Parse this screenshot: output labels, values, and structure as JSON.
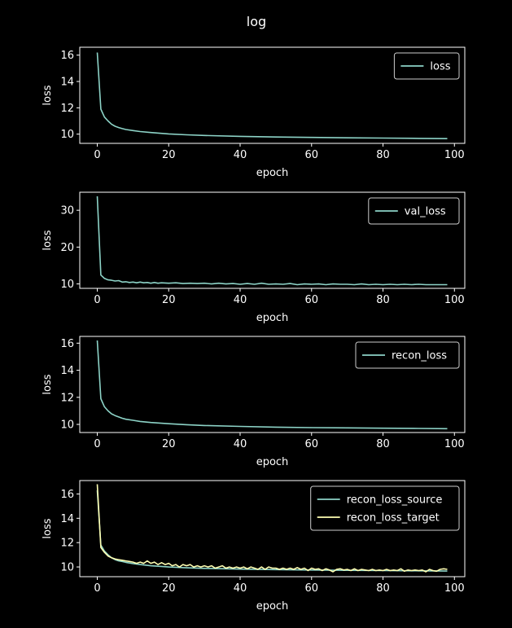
{
  "figure": {
    "title": "log"
  },
  "chart_data": [
    {
      "type": "line",
      "xlabel": "epoch",
      "ylabel": "loss",
      "xlim": [
        -4.9,
        102.9
      ],
      "ylim": [
        9.3,
        16.6
      ],
      "xticks": [
        0,
        20,
        40,
        60,
        80,
        100
      ],
      "yticks": [
        10,
        12,
        14,
        16
      ],
      "legend": "top-right",
      "series": [
        {
          "name": "loss",
          "color": "#8dd3c7",
          "points": [
            [
              0,
              16.2
            ],
            [
              1,
              11.9
            ],
            [
              2,
              11.3
            ],
            [
              3,
              11.0
            ],
            [
              4,
              10.75
            ],
            [
              5,
              10.6
            ],
            [
              6,
              10.5
            ],
            [
              7,
              10.42
            ],
            [
              8,
              10.35
            ],
            [
              10,
              10.27
            ],
            [
              12,
              10.2
            ],
            [
              15,
              10.12
            ],
            [
              20,
              10.02
            ],
            [
              25,
              9.95
            ],
            [
              30,
              9.9
            ],
            [
              40,
              9.83
            ],
            [
              50,
              9.78
            ],
            [
              60,
              9.75
            ],
            [
              70,
              9.72
            ],
            [
              80,
              9.7
            ],
            [
              90,
              9.68
            ],
            [
              98,
              9.66
            ]
          ]
        }
      ]
    },
    {
      "type": "line",
      "xlabel": "epoch",
      "ylabel": "loss",
      "xlim": [
        -4.9,
        102.9
      ],
      "ylim": [
        8.8,
        34.9
      ],
      "xticks": [
        0,
        20,
        40,
        60,
        80,
        100
      ],
      "yticks": [
        10,
        20,
        30
      ],
      "legend": "top-right",
      "series": [
        {
          "name": "val_loss",
          "color": "#8dd3c7",
          "points": [
            [
              0,
              33.8
            ],
            [
              1,
              12.4
            ],
            [
              2,
              11.5
            ],
            [
              3,
              11.1
            ],
            [
              4,
              11.0
            ],
            [
              5,
              10.8
            ],
            [
              6,
              10.9
            ],
            [
              7,
              10.5
            ],
            [
              8,
              10.6
            ],
            [
              9,
              10.4
            ],
            [
              10,
              10.5
            ],
            [
              11,
              10.3
            ],
            [
              12,
              10.5
            ],
            [
              13,
              10.3
            ],
            [
              14,
              10.4
            ],
            [
              15,
              10.2
            ],
            [
              16,
              10.4
            ],
            [
              17,
              10.2
            ],
            [
              18,
              10.3
            ],
            [
              20,
              10.2
            ],
            [
              22,
              10.3
            ],
            [
              24,
              10.1
            ],
            [
              26,
              10.2
            ],
            [
              28,
              10.1
            ],
            [
              30,
              10.2
            ],
            [
              32,
              10.0
            ],
            [
              34,
              10.2
            ],
            [
              36,
              10.0
            ],
            [
              38,
              10.1
            ],
            [
              40,
              9.9
            ],
            [
              42,
              10.1
            ],
            [
              44,
              9.9
            ],
            [
              46,
              10.2
            ],
            [
              48,
              9.9
            ],
            [
              50,
              10.0
            ],
            [
              52,
              9.9
            ],
            [
              54,
              10.1
            ],
            [
              56,
              9.8
            ],
            [
              58,
              10.0
            ],
            [
              60,
              9.9
            ],
            [
              62,
              10.0
            ],
            [
              64,
              9.8
            ],
            [
              66,
              10.0
            ],
            [
              68,
              9.9
            ],
            [
              70,
              9.9
            ],
            [
              72,
              9.8
            ],
            [
              74,
              10.0
            ],
            [
              76,
              9.8
            ],
            [
              78,
              9.9
            ],
            [
              80,
              9.8
            ],
            [
              82,
              9.9
            ],
            [
              84,
              9.8
            ],
            [
              86,
              9.9
            ],
            [
              88,
              9.8
            ],
            [
              90,
              9.9
            ],
            [
              92,
              9.8
            ],
            [
              94,
              9.8
            ],
            [
              96,
              9.8
            ],
            [
              98,
              9.8
            ]
          ]
        }
      ]
    },
    {
      "type": "line",
      "xlabel": "epoch",
      "ylabel": "loss",
      "xlim": [
        -4.9,
        102.9
      ],
      "ylim": [
        9.4,
        16.5
      ],
      "xticks": [
        0,
        20,
        40,
        60,
        80,
        100
      ],
      "yticks": [
        10,
        12,
        14,
        16
      ],
      "legend": "top-right",
      "series": [
        {
          "name": "recon_loss",
          "color": "#8dd3c7",
          "points": [
            [
              0,
              16.2
            ],
            [
              1,
              11.9
            ],
            [
              2,
              11.3
            ],
            [
              3,
              11.0
            ],
            [
              4,
              10.78
            ],
            [
              5,
              10.65
            ],
            [
              6,
              10.55
            ],
            [
              7,
              10.45
            ],
            [
              8,
              10.38
            ],
            [
              10,
              10.3
            ],
            [
              12,
              10.22
            ],
            [
              15,
              10.14
            ],
            [
              20,
              10.05
            ],
            [
              25,
              9.98
            ],
            [
              30,
              9.92
            ],
            [
              40,
              9.85
            ],
            [
              50,
              9.8
            ],
            [
              60,
              9.76
            ],
            [
              70,
              9.74
            ],
            [
              80,
              9.72
            ],
            [
              90,
              9.7
            ],
            [
              98,
              9.68
            ]
          ]
        }
      ]
    },
    {
      "type": "line",
      "xlabel": "epoch",
      "ylabel": "loss",
      "xlim": [
        -4.9,
        102.9
      ],
      "ylim": [
        9.2,
        17.1
      ],
      "xticks": [
        0,
        20,
        40,
        60,
        80,
        100
      ],
      "yticks": [
        10,
        12,
        14,
        16
      ],
      "legend": "top-right",
      "series": [
        {
          "name": "recon_loss_source",
          "color": "#8dd3c7",
          "points": [
            [
              0,
              16.3
            ],
            [
              1,
              11.8
            ],
            [
              2,
              11.3
            ],
            [
              3,
              11.0
            ],
            [
              4,
              10.75
            ],
            [
              5,
              10.6
            ],
            [
              6,
              10.5
            ],
            [
              7,
              10.45
            ],
            [
              8,
              10.38
            ],
            [
              10,
              10.28
            ],
            [
              12,
              10.2
            ],
            [
              15,
              10.1
            ],
            [
              20,
              10.0
            ],
            [
              25,
              9.93
            ],
            [
              30,
              9.88
            ],
            [
              40,
              9.82
            ],
            [
              50,
              9.78
            ],
            [
              60,
              9.75
            ],
            [
              70,
              9.72
            ],
            [
              80,
              9.7
            ],
            [
              90,
              9.68
            ],
            [
              98,
              9.66
            ]
          ]
        },
        {
          "name": "recon_loss_target",
          "color": "#ffffb3",
          "points": [
            [
              0,
              16.8
            ],
            [
              1,
              11.6
            ],
            [
              2,
              11.2
            ],
            [
              3,
              10.9
            ],
            [
              4,
              10.75
            ],
            [
              5,
              10.65
            ],
            [
              6,
              10.6
            ],
            [
              7,
              10.55
            ],
            [
              8,
              10.5
            ],
            [
              9,
              10.45
            ],
            [
              10,
              10.4
            ],
            [
              11,
              10.3
            ],
            [
              12,
              10.4
            ],
            [
              13,
              10.3
            ],
            [
              14,
              10.5
            ],
            [
              15,
              10.3
            ],
            [
              16,
              10.4
            ],
            [
              17,
              10.2
            ],
            [
              18,
              10.35
            ],
            [
              19,
              10.2
            ],
            [
              20,
              10.3
            ],
            [
              21,
              10.1
            ],
            [
              22,
              10.2
            ],
            [
              23,
              10.0
            ],
            [
              24,
              10.2
            ],
            [
              25,
              10.1
            ],
            [
              26,
              10.2
            ],
            [
              27,
              10.0
            ],
            [
              28,
              10.1
            ],
            [
              29,
              10.0
            ],
            [
              30,
              10.1
            ],
            [
              31,
              10.0
            ],
            [
              32,
              10.1
            ],
            [
              33,
              9.9
            ],
            [
              34,
              10.0
            ],
            [
              35,
              10.1
            ],
            [
              36,
              9.9
            ],
            [
              37,
              10.0
            ],
            [
              38,
              9.9
            ],
            [
              39,
              10.0
            ],
            [
              40,
              9.9
            ],
            [
              41,
              10.0
            ],
            [
              42,
              9.85
            ],
            [
              43,
              10.0
            ],
            [
              44,
              9.9
            ],
            [
              45,
              9.8
            ],
            [
              46,
              10.0
            ],
            [
              47,
              9.8
            ],
            [
              48,
              10.0
            ],
            [
              49,
              9.9
            ],
            [
              50,
              9.9
            ],
            [
              51,
              9.8
            ],
            [
              52,
              9.9
            ],
            [
              53,
              9.8
            ],
            [
              54,
              9.9
            ],
            [
              55,
              9.8
            ],
            [
              56,
              9.95
            ],
            [
              57,
              9.8
            ],
            [
              58,
              9.9
            ],
            [
              59,
              9.7
            ],
            [
              60,
              9.9
            ],
            [
              61,
              9.8
            ],
            [
              62,
              9.85
            ],
            [
              63,
              9.7
            ],
            [
              64,
              9.85
            ],
            [
              65,
              9.75
            ],
            [
              66,
              9.6
            ],
            [
              67,
              9.8
            ],
            [
              68,
              9.85
            ],
            [
              69,
              9.75
            ],
            [
              70,
              9.8
            ],
            [
              71,
              9.7
            ],
            [
              72,
              9.85
            ],
            [
              73,
              9.7
            ],
            [
              74,
              9.8
            ],
            [
              75,
              9.75
            ],
            [
              76,
              9.7
            ],
            [
              77,
              9.8
            ],
            [
              78,
              9.7
            ],
            [
              79,
              9.75
            ],
            [
              80,
              9.7
            ],
            [
              81,
              9.8
            ],
            [
              82,
              9.7
            ],
            [
              83,
              9.75
            ],
            [
              84,
              9.7
            ],
            [
              85,
              9.85
            ],
            [
              86,
              9.65
            ],
            [
              87,
              9.75
            ],
            [
              88,
              9.7
            ],
            [
              89,
              9.75
            ],
            [
              90,
              9.7
            ],
            [
              91,
              9.75
            ],
            [
              92,
              9.6
            ],
            [
              93,
              9.8
            ],
            [
              94,
              9.7
            ],
            [
              95,
              9.65
            ],
            [
              96,
              9.8
            ],
            [
              97,
              9.85
            ],
            [
              98,
              9.8
            ]
          ]
        }
      ]
    }
  ]
}
